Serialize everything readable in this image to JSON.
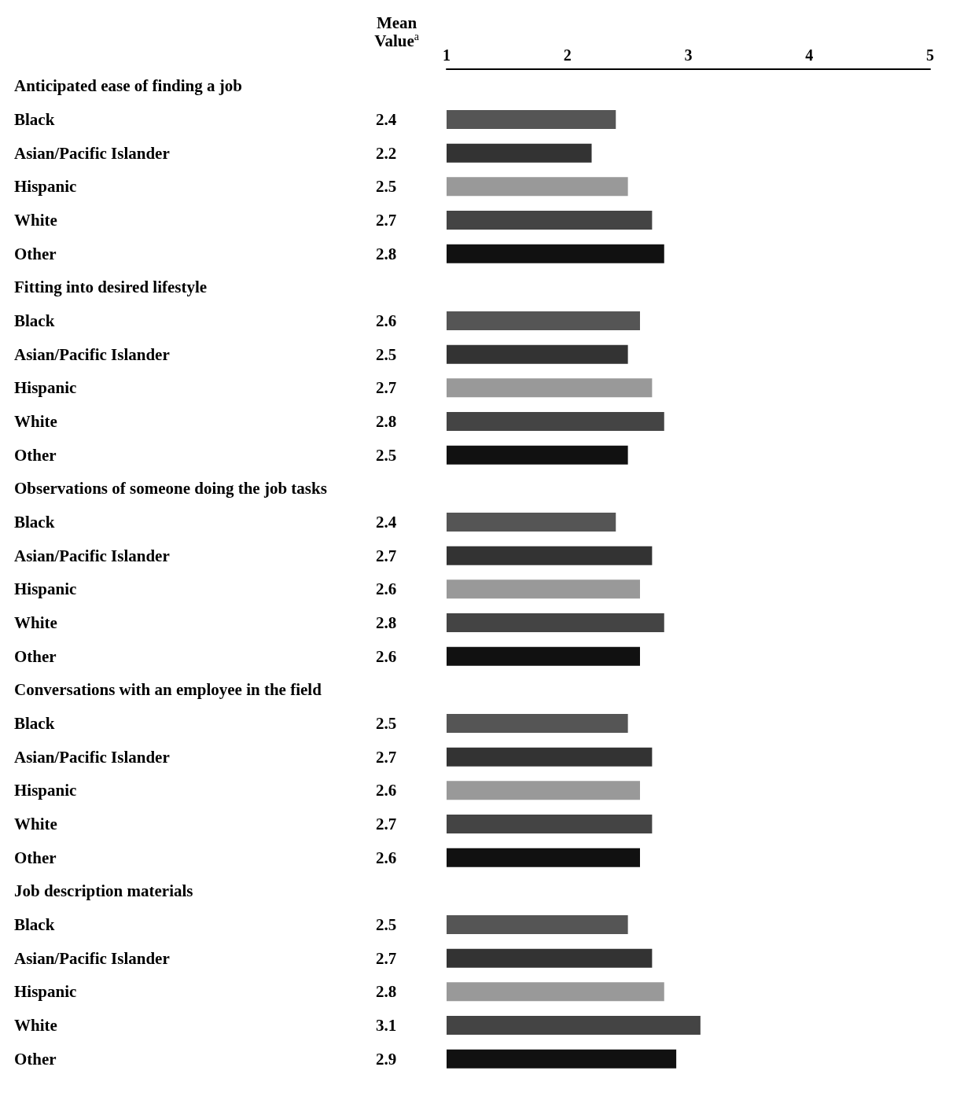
{
  "chart_data": {
    "type": "bar",
    "orientation": "horizontal",
    "annotations": [
      "Mean Value$^{a}$"
    ],
    "categories": [
      "Anticipated ease of finding a job",
      "Black",
      "Asian/Pacific Islander",
      "Hispanic",
      "White",
      "Other",
      "Fitting into desired lifestyle",
      "Black",
      "Asian/Pacific Islander",
      "Hispanic",
      "White",
      "Other",
      "Observations of someone doing the job tasks",
      "Black",
      "Asian/Pacific Islander",
      "Hispanic",
      "White",
      "Other",
      "Conversations with an employee in the field",
      "Black",
      "Asian/Pacific Islander",
      "Hispanic",
      "White",
      "Other",
      "Job description materials",
      "Black",
      "Asian/Pacific Islander",
      "Hispanic",
      "White",
      "Other"
    ],
    "values": [
      null,
      2.4,
      2.2,
      2.5,
      2.7,
      2.8,
      null,
      2.6,
      2.5,
      2.7,
      2.8,
      2.5,
      null,
      2.4,
      2.7,
      2.6,
      2.8,
      2.6,
      null,
      2.5,
      2.7,
      2.6,
      2.7,
      2.6,
      null,
      2.5,
      2.7,
      2.8,
      3.1,
      2.9
    ],
    "colors": [
      null,
      "#555555",
      "#333333",
      "#999999",
      "#444444",
      "#111111",
      null,
      "#555555",
      "#333333",
      "#999999",
      "#444444",
      "#111111",
      null,
      "#555555",
      "#333333",
      "#999999",
      "#444444",
      "#111111",
      null,
      "#555555",
      "#333333",
      "#999999",
      "#444444",
      "#111111",
      null,
      "#555555",
      "#333333",
      "#999999",
      "#444444",
      "#111111"
    ],
    "xlim": [
      1,
      5
    ],
    "xticks": [
      1,
      2,
      3,
      4,
      5
    ],
    "data_labels": true
  }
}
